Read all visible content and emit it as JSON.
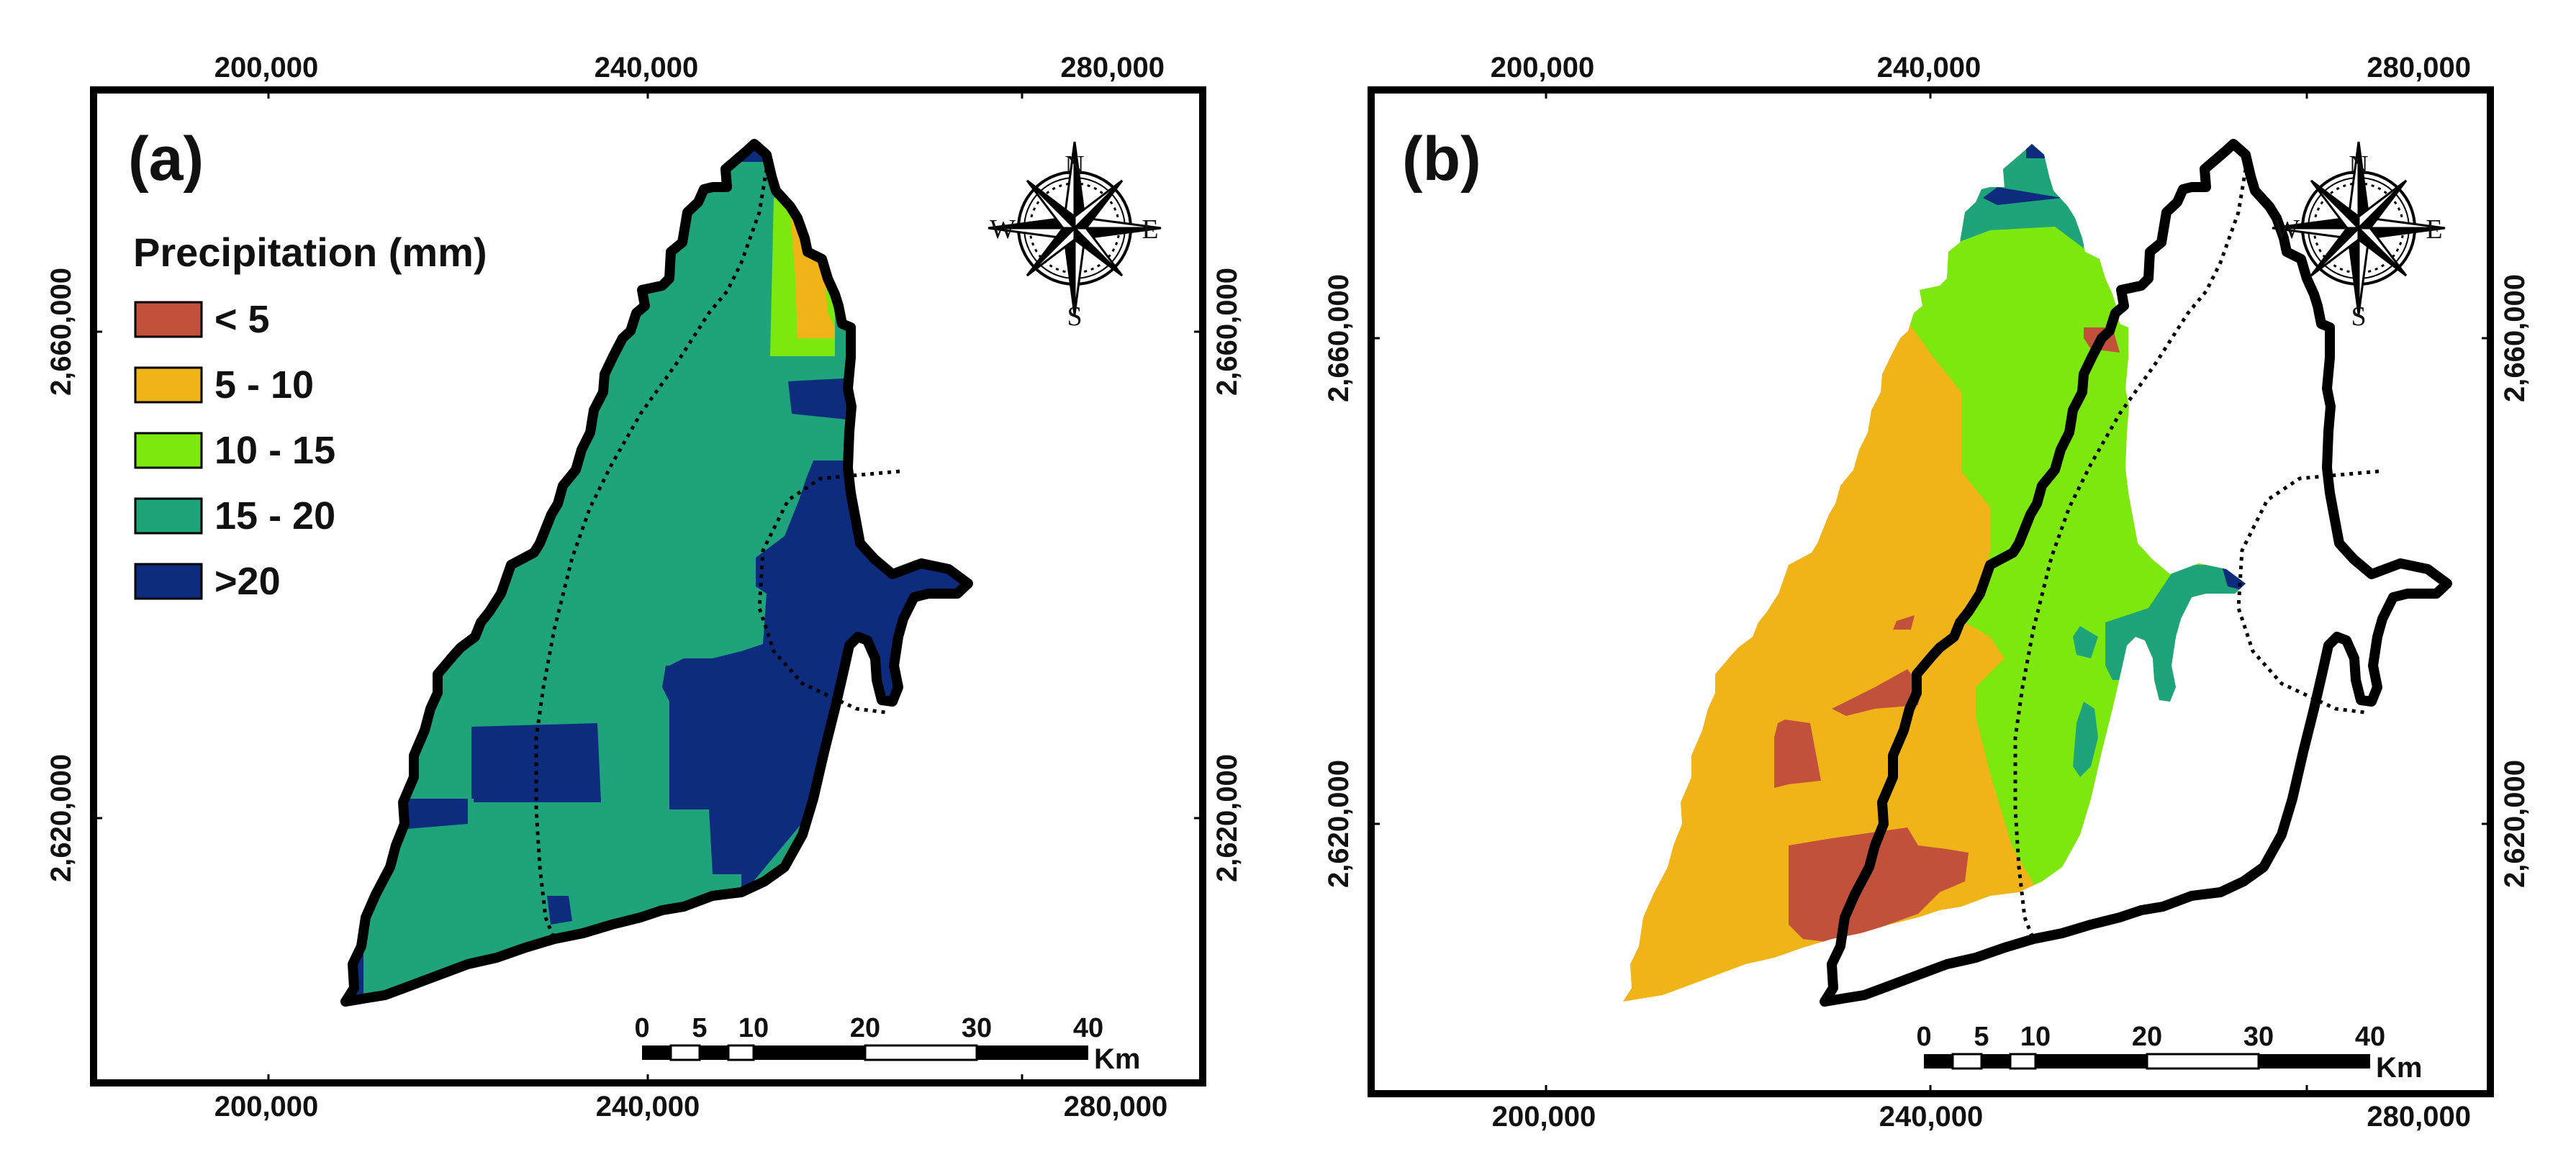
{
  "colors": {
    "lt5": "#c2513b",
    "c5_10": "#f0b419",
    "c10_15": "#7ce80d",
    "c15_20": "#1ea37a",
    "gt20": "#0e2c7e",
    "outline": "#000000",
    "background": "#ffffff"
  },
  "panels": [
    {
      "label": "(a)",
      "top_ticks": [
        "200,000",
        "240,000",
        "280,000"
      ],
      "bottom_ticks": [
        "200,000",
        "240,000",
        "280,000"
      ],
      "left_ticks": [
        "2,660,000",
        "2,620,000"
      ],
      "right_ticks": [
        "2,660,000",
        "2,620,000"
      ],
      "compass": {
        "n": "N",
        "s": "S",
        "e": "E",
        "w": "W"
      },
      "scale": {
        "ticks": [
          "0",
          "5",
          "10",
          "20",
          "30",
          "40"
        ],
        "unit": "Km"
      }
    },
    {
      "label": "(b)",
      "top_ticks": [
        "200,000",
        "240,000",
        "280,000"
      ],
      "bottom_ticks": [
        "200,000",
        "240,000",
        "280,000"
      ],
      "left_ticks": [
        "2,660,000",
        "2,620,000"
      ],
      "right_ticks": [
        "2,660,000",
        "2,620,000"
      ],
      "compass": {
        "n": "N",
        "s": "S",
        "e": "E",
        "w": "W"
      },
      "scale": {
        "ticks": [
          "0",
          "5",
          "10",
          "20",
          "30",
          "40"
        ],
        "unit": "Km"
      }
    }
  ],
  "legend": {
    "title": "Precipitation (mm)",
    "items": [
      {
        "label": "< 5",
        "color": "#c2513b"
      },
      {
        "label": "5 - 10",
        "color": "#f0b419"
      },
      {
        "label": "10 - 15",
        "color": "#7ce80d"
      },
      {
        "label": "15 - 20",
        "color": "#1ea37a"
      },
      {
        "label": ">20",
        "color": "#0e2c7e"
      }
    ]
  }
}
